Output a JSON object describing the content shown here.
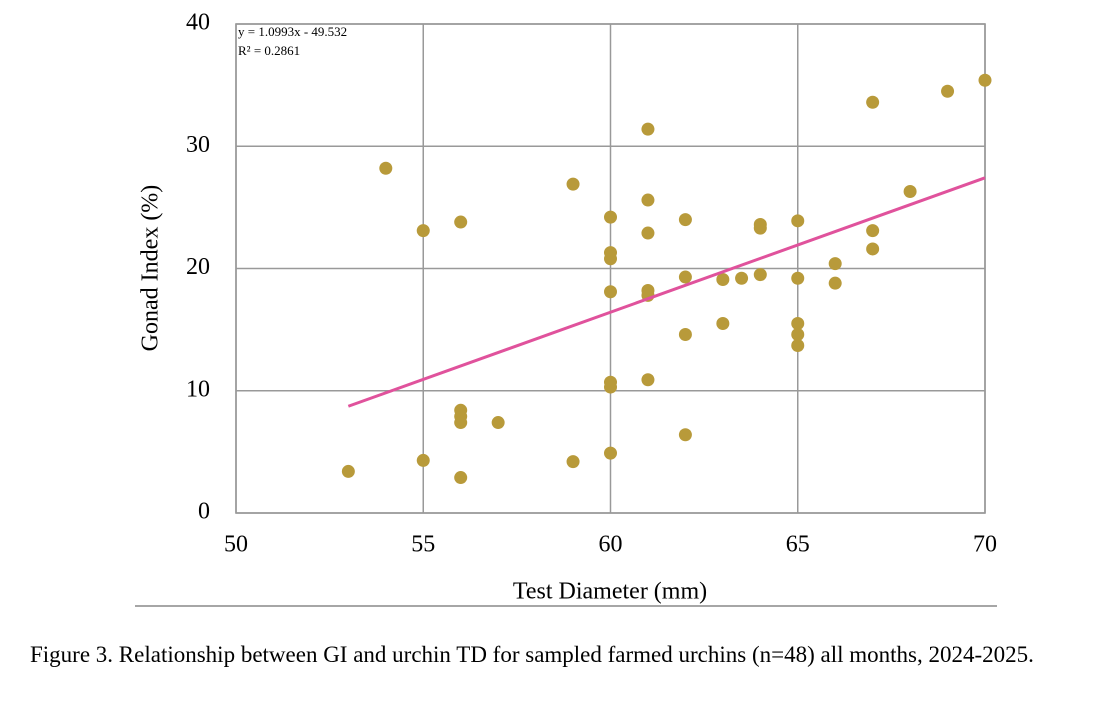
{
  "chart_data": {
    "type": "scatter",
    "x_label": "Test Diameter (mm)",
    "y_label": "Gonad Index (%)",
    "xlim": [
      50,
      70
    ],
    "xticks": [
      50,
      55,
      60,
      65,
      70
    ],
    "ylim": [
      0,
      40
    ],
    "yticks": [
      0,
      10,
      20,
      30,
      40
    ],
    "grid": true,
    "series": [
      {
        "color": "#b89a3a",
        "x": [
          53,
          54,
          55,
          55,
          56,
          56,
          56,
          56,
          56,
          57,
          59,
          59,
          60,
          60,
          60,
          60,
          60,
          60,
          60,
          61,
          61,
          61,
          61,
          61,
          61,
          62,
          62,
          62,
          62,
          63,
          63,
          63.5,
          64,
          64,
          64,
          65,
          65,
          65,
          65,
          65,
          66,
          66,
          67,
          67,
          67,
          68,
          69,
          70
        ],
        "values": [
          3.4,
          28.2,
          23.1,
          4.3,
          23.8,
          8.4,
          7.9,
          7.4,
          2.9,
          7.4,
          26.9,
          4.2,
          24.2,
          21.3,
          20.8,
          18.1,
          10.7,
          10.3,
          4.9,
          31.4,
          25.6,
          22.9,
          18.2,
          17.8,
          10.9,
          24.0,
          19.3,
          14.6,
          6.4,
          19.1,
          15.5,
          19.2,
          23.6,
          23.3,
          19.5,
          23.9,
          19.2,
          15.5,
          14.6,
          13.7,
          20.4,
          18.8,
          33.6,
          23.1,
          21.6,
          26.3,
          34.5,
          35.4
        ]
      }
    ],
    "trendline": {
      "equation": "y = 1.0993x - 49.532",
      "r_squared": "R² = 0.2861",
      "slope": 1.0993,
      "intercept": -49.532,
      "color": "#e0529c"
    }
  },
  "caption": "Figure 3. Relationship between GI and urchin TD for sampled farmed urchins (n=48) all months, 2024-2025."
}
